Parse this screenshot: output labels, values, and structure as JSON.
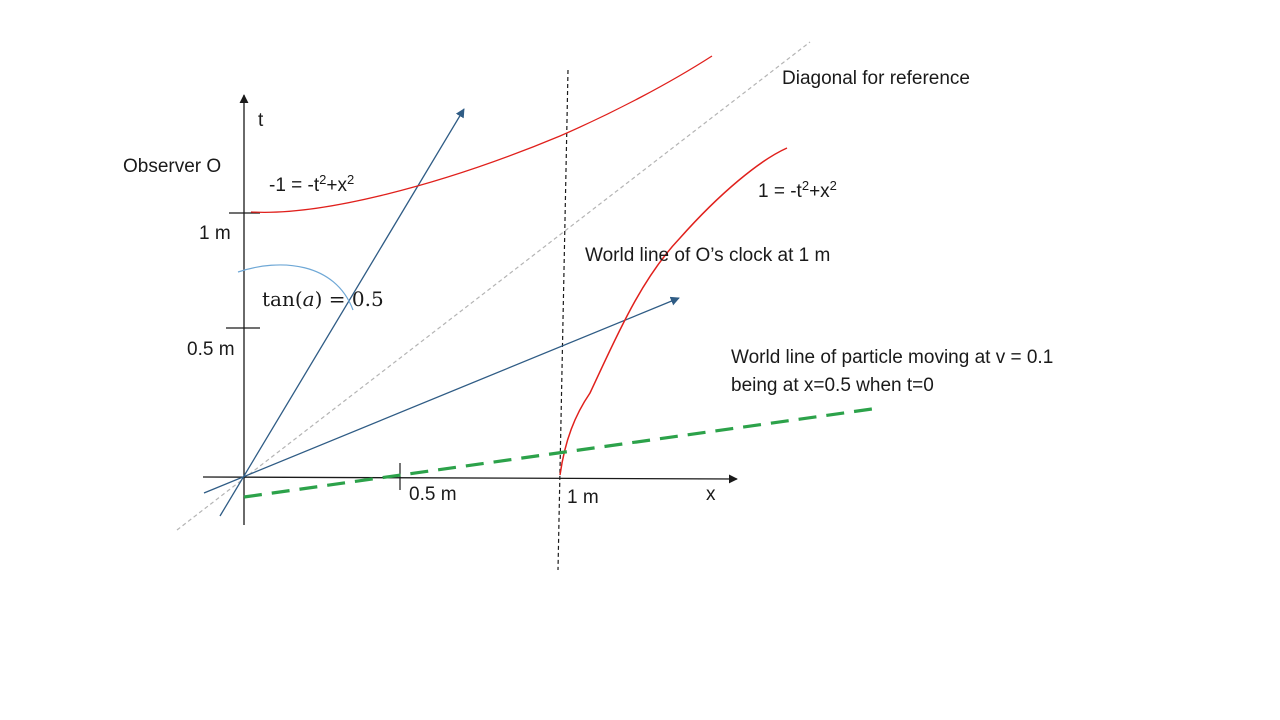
{
  "axes": {
    "t_label": "t",
    "x_label": "x",
    "t_ticks": [
      "1 m",
      "0.5 m"
    ],
    "x_ticks": [
      "0.5 m",
      "1 m"
    ]
  },
  "labels": {
    "observer": "Observer O",
    "hyperbola_upper_prefix": "-1 = -t",
    "hyperbola_lower_prefix": "1 = -t",
    "sup_two": "2",
    "plus_x": "+x",
    "diagonal": "Diagonal for reference",
    "clock_world_line": "World line of O’s clock at 1 m",
    "particle_line1": "World line of particle moving at v = 0.1",
    "particle_line2": "being at x=0.5  when t=0",
    "tan_fn": "tan(",
    "tan_var": "a",
    "tan_rest": ") = 0.5"
  },
  "colors": {
    "axis": "#1a1a1a",
    "hyperbola": "#e0201c",
    "boosted_axes": "#2f5c85",
    "particle": "#2ca24a",
    "diagonal": "#b4b4b4",
    "angle_arc": "#6fa8d6"
  }
}
